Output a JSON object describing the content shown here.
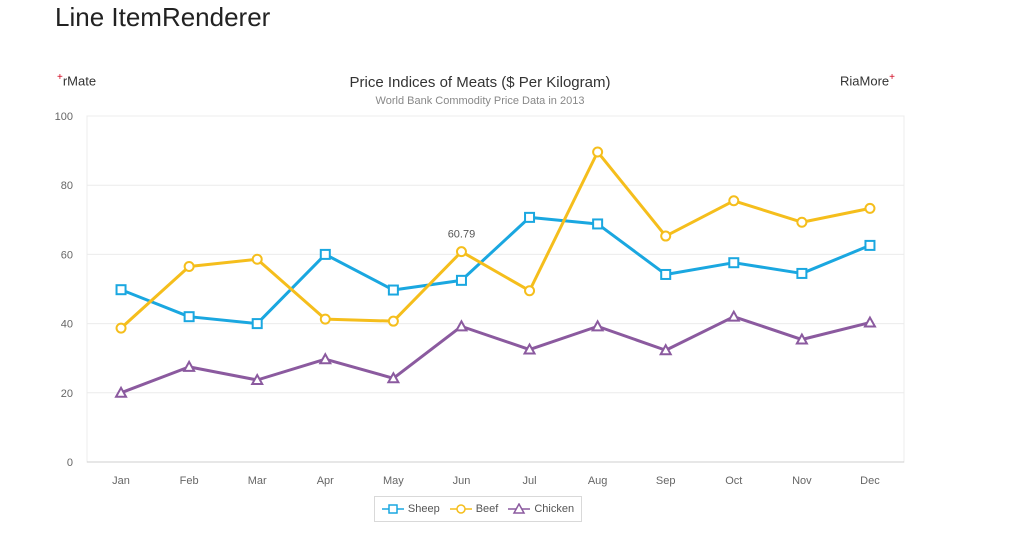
{
  "page": {
    "title": "Line ItemRenderer"
  },
  "brand": {
    "left": "rMate",
    "right": "RiaMore",
    "plus": "+"
  },
  "chart_data": {
    "type": "line",
    "title": "Price Indices of Meats ($ Per Kilogram)",
    "subtitle": "World Bank Commodity Price Data in 2013",
    "categories": [
      "Jan",
      "Feb",
      "Mar",
      "Apr",
      "May",
      "Jun",
      "Jul",
      "Aug",
      "Sep",
      "Oct",
      "Nov",
      "Dec"
    ],
    "ylim": [
      0,
      100
    ],
    "yticks": [
      0,
      20,
      40,
      60,
      80,
      100
    ],
    "grid": true,
    "legend_position": "bottom",
    "series": [
      {
        "name": "Sheep",
        "marker": "square",
        "color": "#1aa7e0",
        "values": [
          49.8,
          42,
          40,
          60,
          49.7,
          52.5,
          70.7,
          68.8,
          54.2,
          57.6,
          54.5,
          62.6
        ]
      },
      {
        "name": "Beef",
        "marker": "circle",
        "color": "#f5be1c",
        "values": [
          38.7,
          56.5,
          58.6,
          41.3,
          40.7,
          60.79,
          49.5,
          89.6,
          65.3,
          75.5,
          69.3,
          73.3
        ]
      },
      {
        "name": "Chicken",
        "marker": "triangle",
        "color": "#8b5a9f",
        "values": [
          20,
          27.5,
          23.7,
          29.7,
          24.2,
          39.2,
          32.5,
          39.2,
          32.3,
          42,
          35.4,
          40.3
        ]
      }
    ],
    "annotations": [
      {
        "series": "Beef",
        "category": "Jun",
        "text": "60.79"
      }
    ]
  }
}
